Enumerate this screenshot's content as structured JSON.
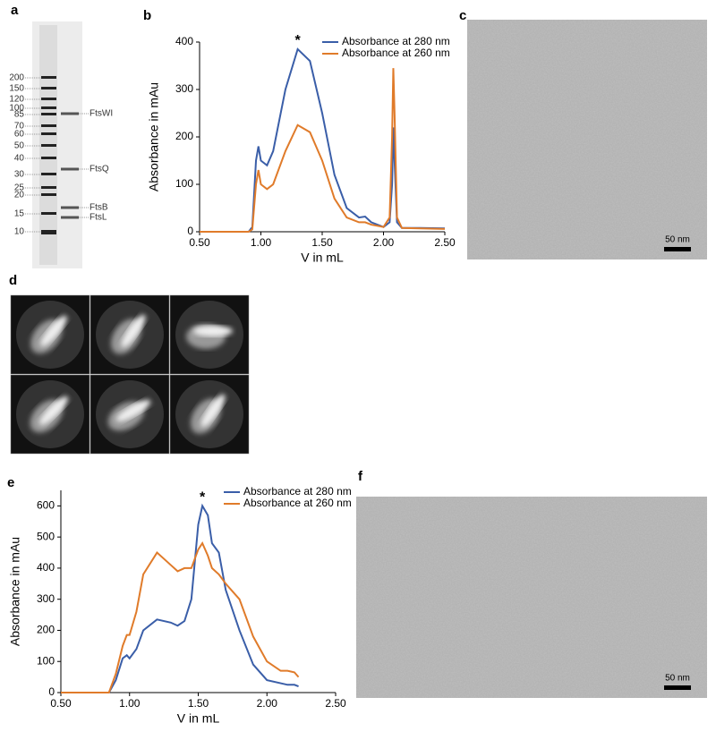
{
  "panel_labels": [
    "a",
    "b",
    "c",
    "d",
    "e",
    "f"
  ],
  "gel": {
    "markers": [
      "200",
      "150",
      "120",
      "100",
      "85",
      "70",
      "60",
      "50",
      "40",
      "30",
      "25",
      "20",
      "15",
      "10"
    ],
    "bands": [
      "FtsWI",
      "FtsQ",
      "FtsB",
      "FtsL"
    ]
  },
  "micrographs": [
    {
      "scale_bar": "50 nm"
    },
    {
      "scale_bar": "50 nm"
    }
  ],
  "chart_data": [
    {
      "type": "line",
      "x_label": "V in mL",
      "y_label": "Absorbance in mAu",
      "annotation": "*",
      "legend": "upper right",
      "x": [
        0.5,
        0.9,
        0.93,
        0.96,
        0.98,
        1.0,
        1.05,
        1.1,
        1.2,
        1.3,
        1.4,
        1.5,
        1.6,
        1.7,
        1.8,
        1.85,
        1.9,
        2.0,
        2.05,
        2.07,
        2.08,
        2.09,
        2.11,
        2.15,
        2.3,
        2.5
      ],
      "series": [
        {
          "name": "Absorbance at 280 nm",
          "color": "#3a5ea8",
          "values": [
            0,
            0,
            10,
            150,
            180,
            150,
            140,
            170,
            300,
            385,
            360,
            250,
            120,
            50,
            30,
            32,
            20,
            10,
            20,
            100,
            220,
            150,
            20,
            8,
            8,
            7
          ]
        },
        {
          "name": "Absorbance at 260 nm",
          "color": "#e07b2a",
          "values": [
            0,
            0,
            5,
            100,
            130,
            100,
            90,
            100,
            170,
            225,
            210,
            150,
            70,
            30,
            20,
            20,
            15,
            10,
            30,
            200,
            345,
            250,
            30,
            8,
            7,
            6
          ]
        }
      ],
      "xlim": [
        0.5,
        2.5
      ],
      "ylim": [
        0,
        400
      ],
      "xticks": [
        {
          "value": 0.5,
          "label": "0.50"
        },
        {
          "value": 1,
          "label": "1.00"
        },
        {
          "value": 1.5,
          "label": "1.50"
        },
        {
          "value": 2,
          "label": "2.00"
        },
        {
          "value": 2.5,
          "label": "2.50"
        }
      ],
      "yticks": [
        0,
        100,
        200,
        300,
        400
      ]
    },
    {
      "type": "line",
      "x_label": "V in mL",
      "y_label": "Absorbance in mAu",
      "annotation": "*",
      "legend": "upper right",
      "x": [
        0.5,
        0.85,
        0.9,
        0.95,
        0.98,
        1.0,
        1.05,
        1.1,
        1.2,
        1.3,
        1.35,
        1.4,
        1.45,
        1.5,
        1.53,
        1.57,
        1.6,
        1.65,
        1.7,
        1.8,
        1.9,
        2.0,
        2.1,
        2.15,
        2.2,
        2.23
      ],
      "series": [
        {
          "name": "Absorbance at 280 nm",
          "color": "#3a5ea8",
          "values": [
            0,
            0,
            40,
            110,
            120,
            110,
            140,
            200,
            235,
            225,
            215,
            230,
            300,
            540,
            600,
            570,
            480,
            450,
            330,
            200,
            90,
            40,
            30,
            25,
            25,
            20
          ]
        },
        {
          "name": "Absorbance at 260 nm",
          "color": "#e07b2a",
          "values": [
            0,
            0,
            60,
            150,
            185,
            185,
            260,
            380,
            450,
            410,
            390,
            400,
            400,
            460,
            480,
            440,
            400,
            380,
            350,
            300,
            180,
            100,
            70,
            70,
            65,
            50
          ]
        }
      ],
      "xlim": [
        0.5,
        2.5
      ],
      "ylim": [
        0,
        650
      ],
      "xticks": [
        {
          "value": 0.5,
          "label": "0.50"
        },
        {
          "value": 1,
          "label": "1.00"
        },
        {
          "value": 1.5,
          "label": "1.50"
        },
        {
          "value": 2,
          "label": "2.00"
        },
        {
          "value": 2.5,
          "label": "2.50"
        }
      ],
      "yticks": [
        0,
        100,
        200,
        300,
        400,
        500,
        600
      ]
    }
  ]
}
